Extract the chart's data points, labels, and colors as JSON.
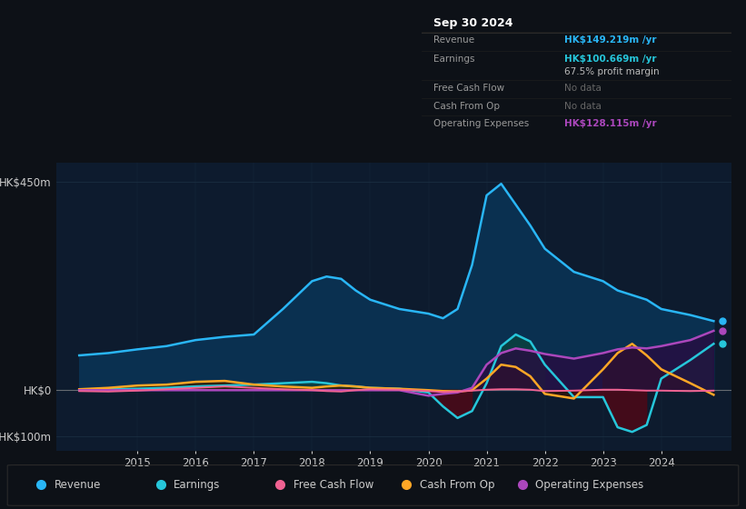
{
  "bg_color": "#0d1117",
  "plot_bg_color": "#0d1b2e",
  "grid_color": "#1a2e40",
  "text_color": "#cccccc",
  "ylabel_top": "HK$450m",
  "ylabel_zero": "HK$0",
  "ylabel_neg": "-HK$100m",
  "years": [
    2014.0,
    2014.5,
    2015.0,
    2015.5,
    2016.0,
    2016.5,
    2017.0,
    2017.5,
    2018.0,
    2018.25,
    2018.5,
    2018.75,
    2019.0,
    2019.5,
    2020.0,
    2020.25,
    2020.5,
    2020.75,
    2021.0,
    2021.25,
    2021.5,
    2021.75,
    2022.0,
    2022.5,
    2023.0,
    2023.25,
    2023.5,
    2023.75,
    2024.0,
    2024.5,
    2024.9
  ],
  "revenue": [
    75,
    80,
    88,
    95,
    108,
    115,
    120,
    175,
    235,
    245,
    240,
    215,
    195,
    175,
    165,
    155,
    175,
    270,
    420,
    445,
    400,
    355,
    305,
    255,
    235,
    215,
    205,
    195,
    175,
    162,
    149
  ],
  "earnings": [
    0,
    2,
    3,
    5,
    8,
    10,
    12,
    15,
    18,
    15,
    10,
    8,
    5,
    3,
    -5,
    -35,
    -60,
    -45,
    15,
    95,
    120,
    105,
    55,
    -15,
    -15,
    -80,
    -90,
    -75,
    25,
    65,
    100
  ],
  "free_cash_flow": [
    -2,
    -3,
    -1,
    2,
    5,
    8,
    5,
    2,
    0,
    -2,
    -3,
    0,
    2,
    1,
    -2,
    -4,
    -3,
    -1,
    1,
    2,
    2,
    1,
    -2,
    -1,
    1,
    1,
    0,
    -1,
    -1,
    -2,
    -1
  ],
  "cash_from_op": [
    2,
    5,
    10,
    12,
    18,
    20,
    12,
    8,
    5,
    8,
    10,
    8,
    5,
    3,
    0,
    -2,
    -3,
    0,
    25,
    55,
    50,
    30,
    -8,
    -18,
    45,
    80,
    100,
    75,
    45,
    15,
    -10
  ],
  "op_expenses": [
    0,
    0,
    0,
    0,
    0,
    0,
    0,
    0,
    0,
    0,
    0,
    0,
    0,
    0,
    -12,
    -8,
    -5,
    5,
    55,
    80,
    90,
    85,
    78,
    68,
    80,
    88,
    92,
    90,
    95,
    108,
    128
  ],
  "revenue_color": "#29b6f6",
  "earnings_color": "#26c6da",
  "fcf_color": "#f06292",
  "cash_op_color": "#ffa726",
  "op_exp_color": "#ab47bc",
  "revenue_fill": "#0a3050",
  "legend_items": [
    "Revenue",
    "Earnings",
    "Free Cash Flow",
    "Cash From Op",
    "Operating Expenses"
  ],
  "legend_colors": [
    "#29b6f6",
    "#26c6da",
    "#f06292",
    "#ffa726",
    "#ab47bc"
  ],
  "tooltip_bg": "#080c10",
  "tooltip_title": "Sep 30 2024",
  "tooltip_revenue_val": "HK$149.219m /yr",
  "tooltip_revenue_color": "#29b6f6",
  "tooltip_earnings_val": "HK$100.669m /yr",
  "tooltip_earnings_color": "#26c6da",
  "tooltip_margin": "67.5% profit margin",
  "tooltip_fcf": "No data",
  "tooltip_cashop": "No data",
  "tooltip_opex_val": "HK$128.115m /yr",
  "tooltip_opex_color": "#ab47bc",
  "ylim_min": -130,
  "ylim_max": 490,
  "xlim_min": 2013.6,
  "xlim_max": 2025.2,
  "xticks": [
    2015,
    2016,
    2017,
    2018,
    2019,
    2020,
    2021,
    2022,
    2023,
    2024
  ]
}
